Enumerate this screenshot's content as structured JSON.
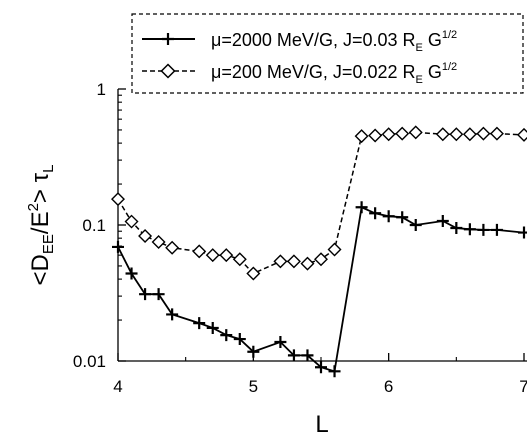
{
  "chart_data": {
    "type": "line",
    "xlabel": "L",
    "ylabel": {
      "lt": "<D",
      "sub1": "EE",
      "slash": "/E",
      "sup": "2",
      "gt": "> τ",
      "sub2": "L"
    },
    "xlim": [
      4,
      7
    ],
    "ylim": [
      0.01,
      1
    ],
    "yscale": "log",
    "grid": false,
    "legend_position": "top",
    "x_ticks": [
      {
        "value": 4,
        "label": "4"
      },
      {
        "value": 5,
        "label": "5"
      },
      {
        "value": 6,
        "label": "6"
      },
      {
        "value": 7,
        "label": "7"
      }
    ],
    "y_ticks": [
      {
        "value": 0.01,
        "label": "0.01"
      },
      {
        "value": 0.1,
        "label": "0.1"
      },
      {
        "value": 1,
        "label": "1"
      }
    ],
    "series": [
      {
        "legend": {
          "main": "μ=2000 MeV/G, J=0.03 R",
          "sub": "E",
          "mid": " G",
          "sup": "1/2"
        },
        "line_style": "solid",
        "marker": "plus",
        "color": "#000000",
        "x": [
          4.0,
          4.1,
          4.2,
          4.3,
          4.4,
          4.6,
          4.7,
          4.8,
          4.9,
          5.0,
          5.2,
          5.3,
          5.4,
          5.5,
          5.6,
          5.8,
          5.9,
          6.0,
          6.1,
          6.2,
          6.4,
          6.5,
          6.6,
          6.7,
          6.8,
          7.0
        ],
        "y": [
          0.069,
          0.044,
          0.031,
          0.031,
          0.022,
          0.019,
          0.0175,
          0.0155,
          0.0145,
          0.0117,
          0.0138,
          0.011,
          0.011,
          0.009,
          0.0084,
          0.135,
          0.122,
          0.116,
          0.114,
          0.1,
          0.107,
          0.095,
          0.093,
          0.092,
          0.092,
          0.088
        ]
      },
      {
        "legend": {
          "main": "μ=200 MeV/G, J=0.022 R",
          "sub": "E",
          "mid": " G",
          "sup": "1/2"
        },
        "line_style": "dashed",
        "marker": "diamond",
        "color": "#000000",
        "x": [
          4.0,
          4.1,
          4.2,
          4.3,
          4.4,
          4.6,
          4.7,
          4.8,
          4.9,
          5.0,
          5.2,
          5.3,
          5.4,
          5.5,
          5.6,
          5.8,
          5.9,
          6.0,
          6.1,
          6.2,
          6.4,
          6.5,
          6.6,
          6.7,
          6.8,
          7.0
        ],
        "y": [
          0.155,
          0.106,
          0.083,
          0.075,
          0.068,
          0.064,
          0.06,
          0.06,
          0.056,
          0.044,
          0.054,
          0.054,
          0.052,
          0.056,
          0.066,
          0.45,
          0.455,
          0.465,
          0.47,
          0.48,
          0.465,
          0.465,
          0.465,
          0.47,
          0.47,
          0.46
        ]
      }
    ]
  }
}
